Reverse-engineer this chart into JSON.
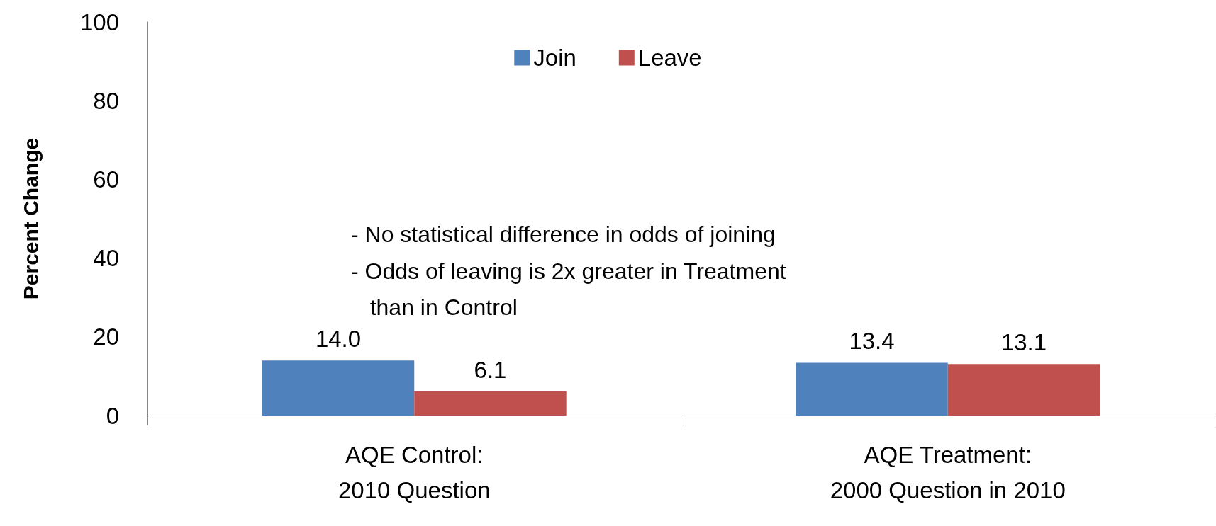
{
  "chart_data": {
    "type": "bar",
    "ylabel": "Percent Change",
    "categories": [
      "AQE Control:\n2010 Question",
      "AQE Treatment:\n2000 Question in 2010"
    ],
    "series": [
      {
        "name": "Join",
        "color": "#4f81bd",
        "values": [
          14.0,
          13.4
        ],
        "value_labels": [
          "14.0",
          "13.4"
        ]
      },
      {
        "name": "Leave",
        "color": "#c0504d",
        "values": [
          6.1,
          13.1
        ],
        "value_labels": [
          "6.1",
          "13.1"
        ]
      }
    ],
    "ylim": [
      0,
      100
    ],
    "yticks": [
      0,
      20,
      40,
      60,
      80,
      100
    ],
    "grid": false,
    "legend": "top",
    "annotations": [
      "- No statistical difference in odds of joining",
      "- Odds of leaving is 2x greater in Treatment\n   than in Control"
    ]
  }
}
